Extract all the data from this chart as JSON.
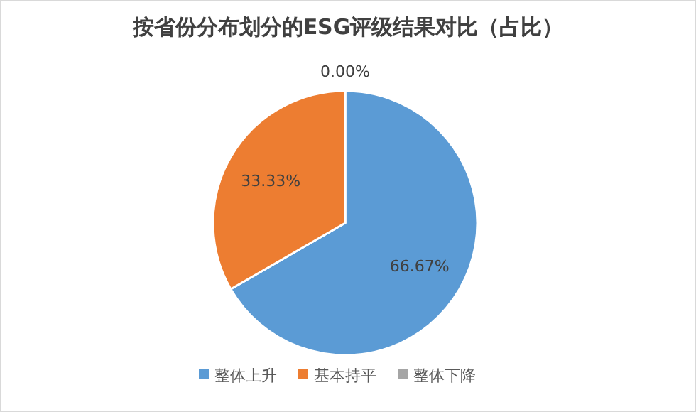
{
  "chart_data": {
    "type": "pie",
    "title": "按省份分布划分的ESG评级结果对比（占比）",
    "categories": [
      "整体上升",
      "基本持平",
      "整体下降"
    ],
    "values": [
      66.67,
      33.33,
      0.0
    ],
    "colors": [
      "#5b9bd5",
      "#ed7d31",
      "#a5a5a5"
    ],
    "value_labels": [
      "66.67%",
      "33.33%",
      "0.00%"
    ],
    "legend": "bottom"
  }
}
